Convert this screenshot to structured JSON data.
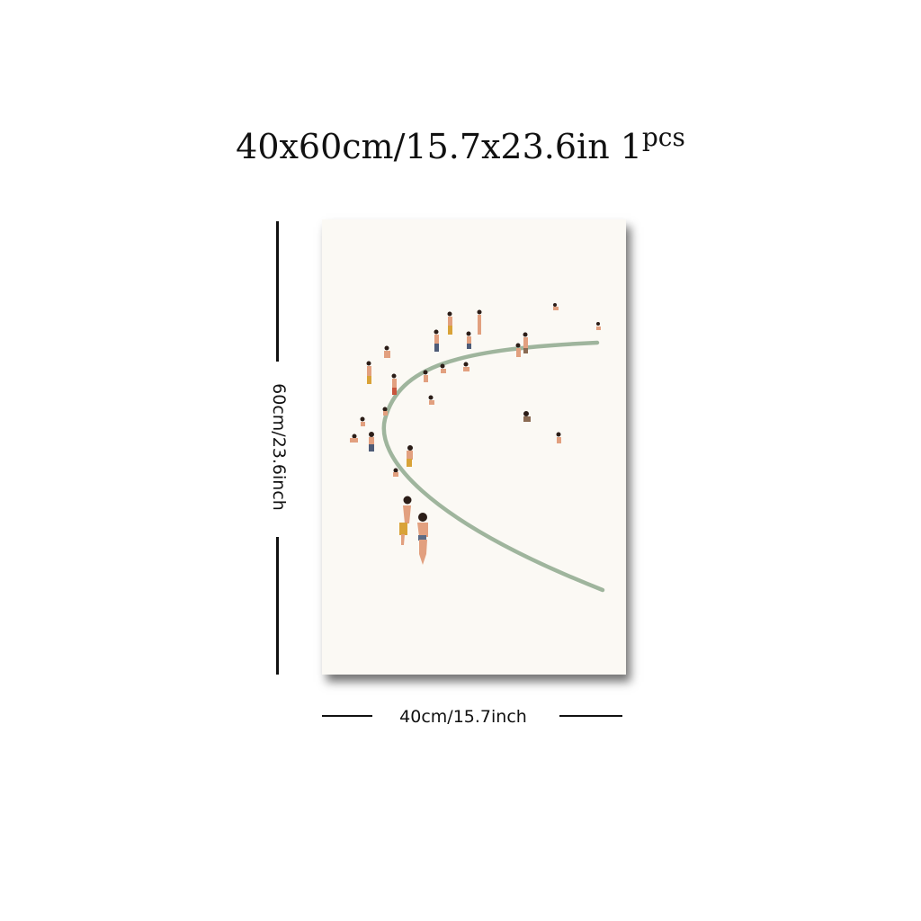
{
  "heading": {
    "size_text": "40x60cm/15.7x23.6in",
    "quantity_count": "1",
    "quantity_unit": "pcs"
  },
  "dimensions": {
    "height_label": "60cm/23.6inch",
    "width_label": "40cm/15.7inch"
  },
  "artwork": {
    "subject": "abstract beach scene with small bathers along a curved shoreline",
    "background_color": "#fbf9f4",
    "shoreline_color": "#9fb59d",
    "skin_color": "#e2a07f",
    "hair_color": "#2b1d17"
  }
}
